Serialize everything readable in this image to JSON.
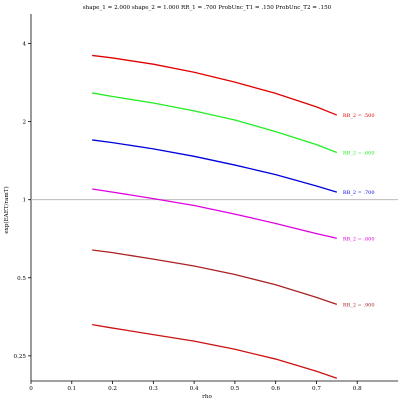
{
  "chart_data": {
    "type": "line",
    "title": "shape_1 = 2.000  shape_2 = 1.000  RR_1 = .700  ProbUnc_T1 = .150  ProbUnc_T2 = .150",
    "xlabel": "rho",
    "ylabel": "exp(EAET/ramT)",
    "xlim": [
      0,
      0.9
    ],
    "ylim": [
      0.2,
      5.2
    ],
    "yscale": "log",
    "grid": false,
    "legend": "none",
    "x_ticks": [
      0,
      0.1,
      0.2,
      0.3,
      0.4,
      0.5,
      0.6,
      0.7,
      0.8
    ],
    "x_tick_labels": [
      "0",
      "0.1",
      "0.2",
      "0.3",
      "0.4",
      "0.5",
      "0.6",
      "0.7",
      "0.8"
    ],
    "y_ticks": [
      0.25,
      0.5,
      1,
      2,
      4
    ],
    "y_tick_labels": [
      "0.25",
      "0.5",
      "1",
      "2",
      "4"
    ],
    "reference_line": {
      "y": 1,
      "color": "#b0b0b0"
    },
    "series": [
      {
        "name": "RR_2 = .500",
        "color": "#e00000",
        "x": [
          0.15,
          0.2,
          0.3,
          0.4,
          0.5,
          0.6,
          0.7,
          0.75
        ],
        "y": [
          3.6,
          3.52,
          3.33,
          3.1,
          2.84,
          2.57,
          2.28,
          2.12
        ]
      },
      {
        "name": "RR_2 = .600",
        "color": "#22ee22",
        "x": [
          0.15,
          0.2,
          0.3,
          0.4,
          0.5,
          0.6,
          0.7,
          0.75
        ],
        "y": [
          2.58,
          2.5,
          2.36,
          2.2,
          2.03,
          1.83,
          1.63,
          1.52
        ]
      },
      {
        "name": "RR_2 = .700",
        "color": "#0000dd",
        "x": [
          0.15,
          0.2,
          0.3,
          0.4,
          0.5,
          0.6,
          0.7,
          0.75
        ],
        "y": [
          1.7,
          1.66,
          1.57,
          1.47,
          1.36,
          1.25,
          1.13,
          1.07
        ]
      },
      {
        "name": "RR_2 = .800",
        "color": "#e000e0",
        "x": [
          0.15,
          0.2,
          0.3,
          0.4,
          0.5,
          0.6,
          0.7,
          0.75
        ],
        "y": [
          1.1,
          1.07,
          1.01,
          0.95,
          0.88,
          0.81,
          0.74,
          0.71
        ]
      },
      {
        "name": "RR_2 = .900",
        "color": "#aa2222",
        "x": [
          0.15,
          0.2,
          0.3,
          0.4,
          0.5,
          0.6,
          0.7,
          0.75
        ],
        "y": [
          0.64,
          0.625,
          0.59,
          0.555,
          0.515,
          0.47,
          0.42,
          0.395
        ]
      },
      {
        "name": "",
        "color": "#cc1111",
        "x": [
          0.15,
          0.2,
          0.3,
          0.4,
          0.5,
          0.6,
          0.7,
          0.75
        ],
        "y": [
          0.33,
          0.32,
          0.302,
          0.285,
          0.265,
          0.243,
          0.218,
          0.205
        ]
      }
    ]
  }
}
